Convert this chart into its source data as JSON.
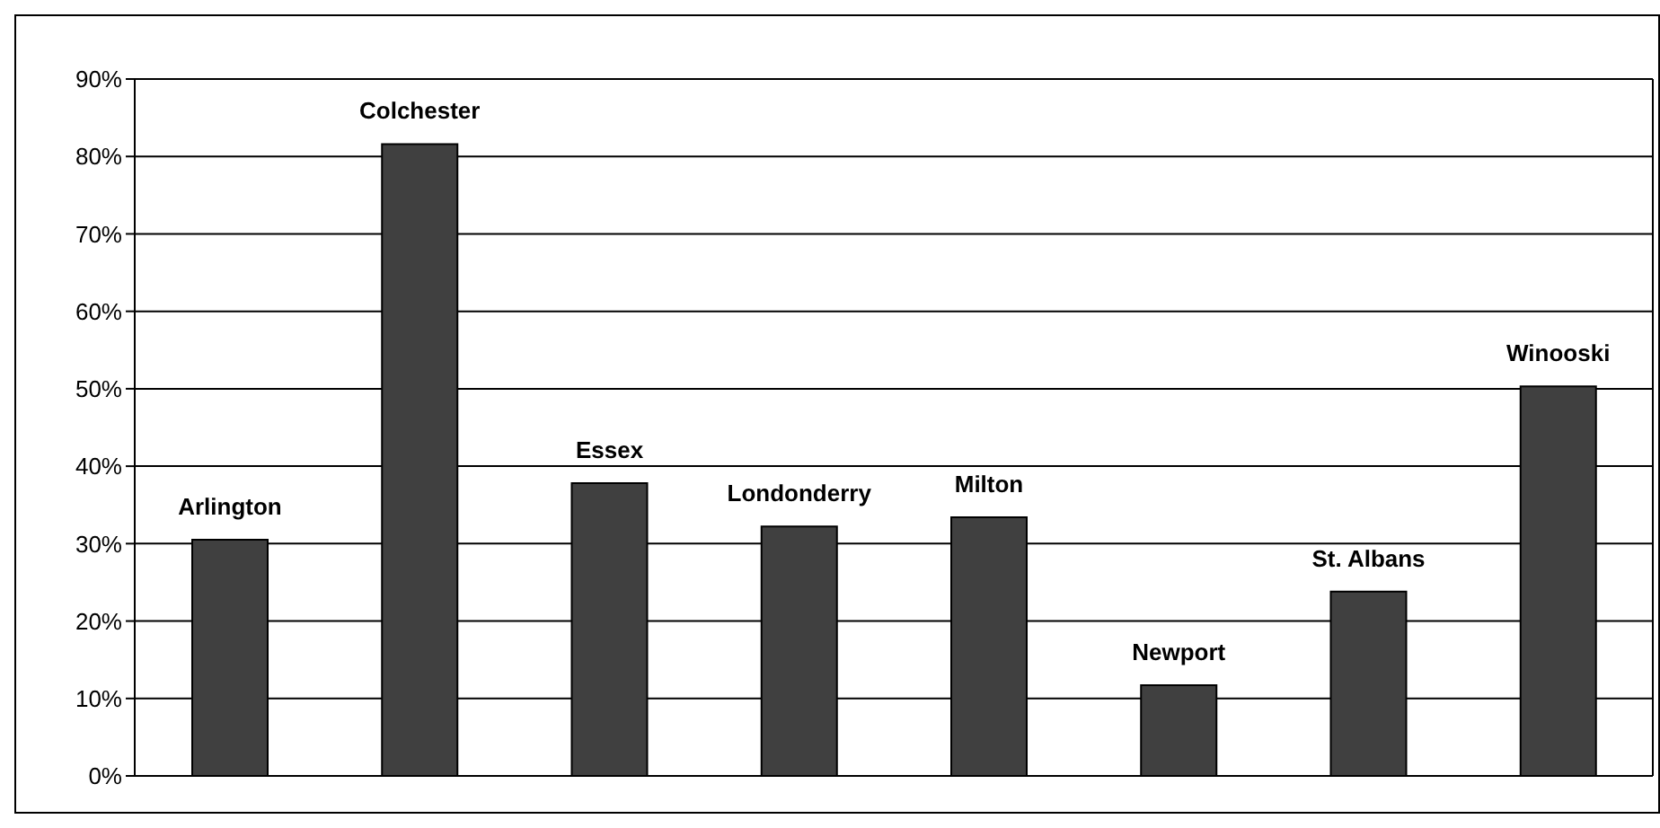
{
  "chart_data": {
    "type": "bar",
    "categories": [
      "Arlington",
      "Colchester",
      "Essex",
      "Londonderry",
      "Milton",
      "Newport",
      "St. Albans",
      "Winooski"
    ],
    "values": [
      30.5,
      81.6,
      37.8,
      32.2,
      33.4,
      11.7,
      23.8,
      50.3
    ],
    "color": "#404040",
    "ylim": [
      0,
      90
    ],
    "yticks": [
      {
        "value": 0,
        "label": "0%"
      },
      {
        "value": 10,
        "label": "10%"
      },
      {
        "value": 20,
        "label": "20%"
      },
      {
        "value": 30,
        "label": "30%"
      },
      {
        "value": 40,
        "label": "40%"
      },
      {
        "value": 50,
        "label": "50%"
      },
      {
        "value": 60,
        "label": "60%"
      },
      {
        "value": 70,
        "label": "70%"
      },
      {
        "value": 80,
        "label": "80%"
      },
      {
        "value": 90,
        "label": "90%"
      }
    ],
    "grid": "y",
    "legend": false
  }
}
